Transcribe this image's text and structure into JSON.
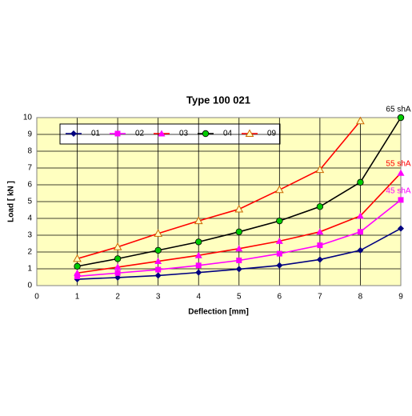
{
  "chart_data": {
    "type": "line",
    "title": "Type 100 021",
    "x_label": "Deflection [mm]",
    "y_label": "Load [ kN ]",
    "xlim": [
      0,
      9
    ],
    "xticks": [
      0,
      1,
      2,
      3,
      4,
      5,
      6,
      7,
      8,
      9
    ],
    "ylim": [
      0,
      10
    ],
    "yticks": [
      0,
      1,
      2,
      3,
      4,
      5,
      6,
      7,
      8,
      9,
      10
    ],
    "grid": true,
    "series": [
      {
        "name": "01",
        "color": "#000080",
        "marker_color": "#000080",
        "marker": "diamond",
        "x": [
          1,
          2,
          3,
          4,
          5,
          6,
          7,
          8,
          9
        ],
        "values": [
          0.38,
          0.48,
          0.6,
          0.78,
          0.98,
          1.2,
          1.55,
          2.1,
          3.4
        ]
      },
      {
        "name": "02",
        "color": "#ff00ff",
        "marker_color": "#ff00ff",
        "marker": "square",
        "x": [
          1,
          2,
          3,
          4,
          5,
          6,
          7,
          8,
          9
        ],
        "values": [
          0.55,
          0.75,
          0.95,
          1.2,
          1.5,
          1.9,
          2.4,
          3.2,
          5.1
        ]
      },
      {
        "name": "03",
        "color": "#ff0000",
        "marker_color": "#ff00ff",
        "marker": "triangle",
        "x": [
          1,
          2,
          3,
          4,
          5,
          6,
          7,
          8,
          9
        ],
        "values": [
          0.75,
          1.1,
          1.45,
          1.8,
          2.2,
          2.65,
          3.2,
          4.15,
          6.7
        ]
      },
      {
        "name": "04",
        "color": "#000000",
        "marker_color": "#00cc00",
        "marker": "circle",
        "x": [
          1,
          2,
          3,
          4,
          5,
          6,
          7,
          8,
          9
        ],
        "values": [
          1.15,
          1.6,
          2.1,
          2.6,
          3.2,
          3.85,
          4.7,
          6.15,
          10
        ]
      },
      {
        "name": "09",
        "color": "#ff0000",
        "marker_color": "#cc6600",
        "marker": "open-triangle",
        "x": [
          1,
          2,
          3,
          4,
          5,
          6,
          7,
          8
        ],
        "values": [
          1.6,
          2.3,
          3.1,
          3.85,
          4.55,
          5.7,
          6.9,
          9.8
        ]
      }
    ],
    "annotations": [
      {
        "text": "65 shA",
        "color": "#000000"
      },
      {
        "text": "55 shA",
        "color": "#ff0000"
      },
      {
        "text": "45 shA",
        "color": "#ff00ff"
      }
    ]
  }
}
